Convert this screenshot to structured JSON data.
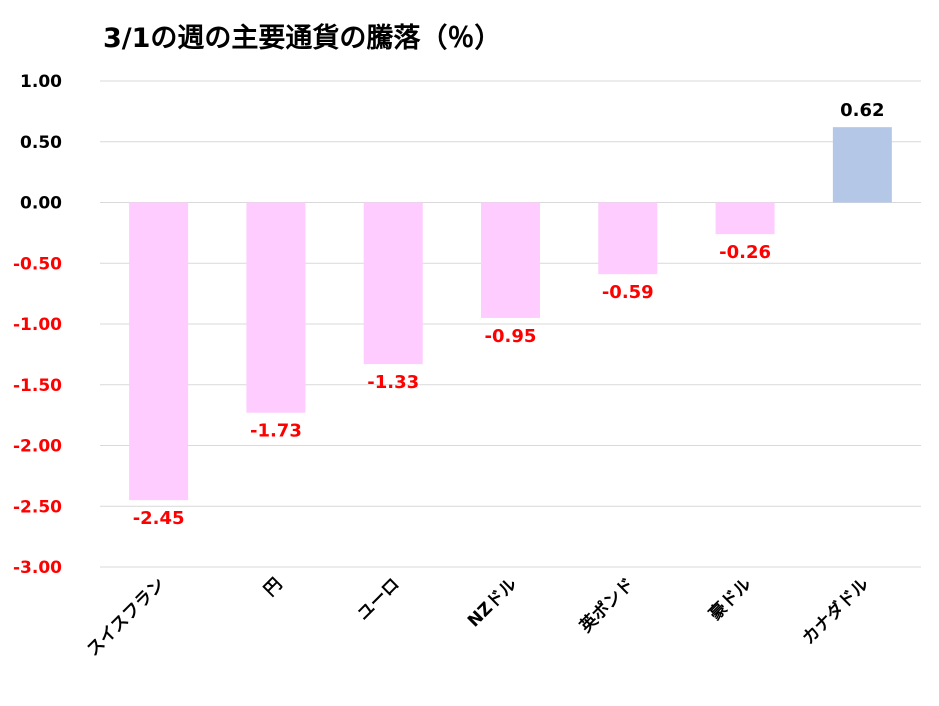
{
  "chart_data": {
    "type": "bar",
    "title": "3/1の週の主要通貨の騰落（％）",
    "categories": [
      "スイスフラン",
      "円",
      "ユーロ",
      "NZドル",
      "英ポンド",
      "豪ドル",
      "カナダドル"
    ],
    "values": [
      -2.45,
      -1.73,
      -1.33,
      -0.95,
      -0.59,
      -0.26,
      0.62
    ],
    "data_labels": [
      "-2.45",
      "-1.73",
      "-1.33",
      "-0.95",
      "-0.59",
      "-0.26",
      "0.62"
    ],
    "ylim": [
      -3.0,
      1.0
    ],
    "yticks": [
      1.0,
      0.5,
      0.0,
      -0.5,
      -1.0,
      -1.5,
      -2.0,
      -2.5,
      -3.0
    ],
    "ytick_labels": [
      "1.00",
      "0.50",
      "0.00",
      "-0.50",
      "-1.00",
      "-1.50",
      "-2.00",
      "-2.50",
      "-3.00"
    ],
    "xlabel": "",
    "ylabel": "",
    "grid": true,
    "legend": "none",
    "colors": {
      "negative_bar": "#FFCCFF",
      "positive_bar": "#B4C7E7",
      "negative_label": "#FF0000",
      "positive_label": "#000000",
      "gridline": "#D9D9D9"
    }
  }
}
